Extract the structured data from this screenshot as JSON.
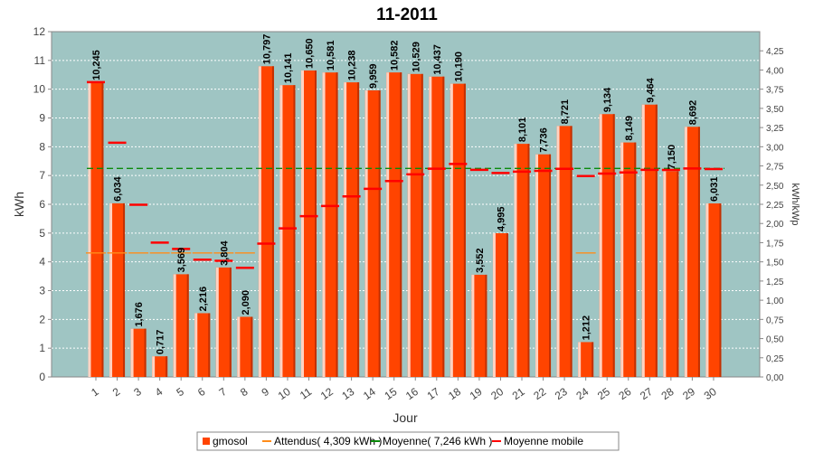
{
  "chart_data": {
    "type": "bar",
    "title": "11-2011",
    "xlabel": "Jour",
    "ylabel": "kWh",
    "ylabel_right": "kWh/kWp",
    "ylim": [
      0,
      12
    ],
    "y2lim": [
      0,
      4.5
    ],
    "yticks": [
      "0",
      "1",
      "2",
      "3",
      "4",
      "5",
      "6",
      "7",
      "8",
      "9",
      "10",
      "11",
      "12"
    ],
    "y2ticks": [
      "0,00",
      "0,25",
      "0,50",
      "0,75",
      "1,00",
      "1,25",
      "1,50",
      "1,75",
      "2,00",
      "2,25",
      "2,50",
      "2,75",
      "3,00",
      "3,25",
      "3,50",
      "3,75",
      "4,00",
      "4,25"
    ],
    "grid": true,
    "legend_position": "bottom",
    "categories": [
      "1",
      "2",
      "3",
      "4",
      "5",
      "6",
      "7",
      "8",
      "9",
      "10",
      "11",
      "12",
      "13",
      "14",
      "15",
      "16",
      "17",
      "18",
      "19",
      "20",
      "21",
      "22",
      "23",
      "24",
      "25",
      "26",
      "27",
      "28",
      "29",
      "30"
    ],
    "series": [
      {
        "name": "gmosol",
        "type": "bar",
        "color": "#ff4400",
        "values": [
          10.245,
          6.034,
          1.676,
          0.717,
          3.569,
          2.216,
          3.804,
          2.09,
          10.797,
          10.141,
          10.65,
          10.581,
          10.238,
          9.959,
          10.582,
          10.529,
          10.437,
          10.19,
          3.552,
          4.995,
          8.101,
          7.736,
          8.721,
          1.212,
          9.134,
          8.149,
          9.464,
          7.15,
          8.692,
          6.031
        ],
        "labels": [
          "10,245",
          "6,034",
          "1,676",
          "0,717",
          "3,569",
          "2,216",
          "3,804",
          "2,090",
          "10,797",
          "10,141",
          "10,650",
          "10,581",
          "10,238",
          "9,959",
          "10,582",
          "10,529",
          "10,437",
          "10,190",
          "3,552",
          "4,995",
          "8,101",
          "7,736",
          "8,721",
          "1,212",
          "9,134",
          "8,149",
          "9,464",
          "7,150",
          "8,692",
          "6,031"
        ]
      },
      {
        "name": "Attendus( 4,309 kWh )",
        "type": "segments",
        "color": "#ff8c1a",
        "values": [
          4.309,
          4.309,
          4.309,
          4.309,
          4.309,
          4.309,
          4.309,
          4.309,
          null,
          null,
          null,
          null,
          null,
          null,
          null,
          null,
          null,
          null,
          null,
          null,
          null,
          null,
          null,
          4.309,
          null,
          null,
          null,
          null,
          null,
          null
        ]
      },
      {
        "name": "Moyenne( 7,246 kWh )",
        "type": "hline",
        "color": "#0a8a0a",
        "value": 7.246
      },
      {
        "name": "Moyenne mobile",
        "type": "markers",
        "color": "#ff0000",
        "values": [
          10.245,
          8.14,
          5.985,
          4.668,
          4.448,
          4.076,
          4.037,
          3.793,
          4.634,
          5.165,
          5.589,
          5.943,
          6.274,
          6.537,
          6.807,
          7.039,
          7.238,
          7.401,
          7.198,
          7.088,
          7.136,
          7.164,
          7.232,
          6.981,
          7.067,
          7.109,
          7.196,
          7.194,
          7.245,
          7.225
        ]
      }
    ]
  }
}
